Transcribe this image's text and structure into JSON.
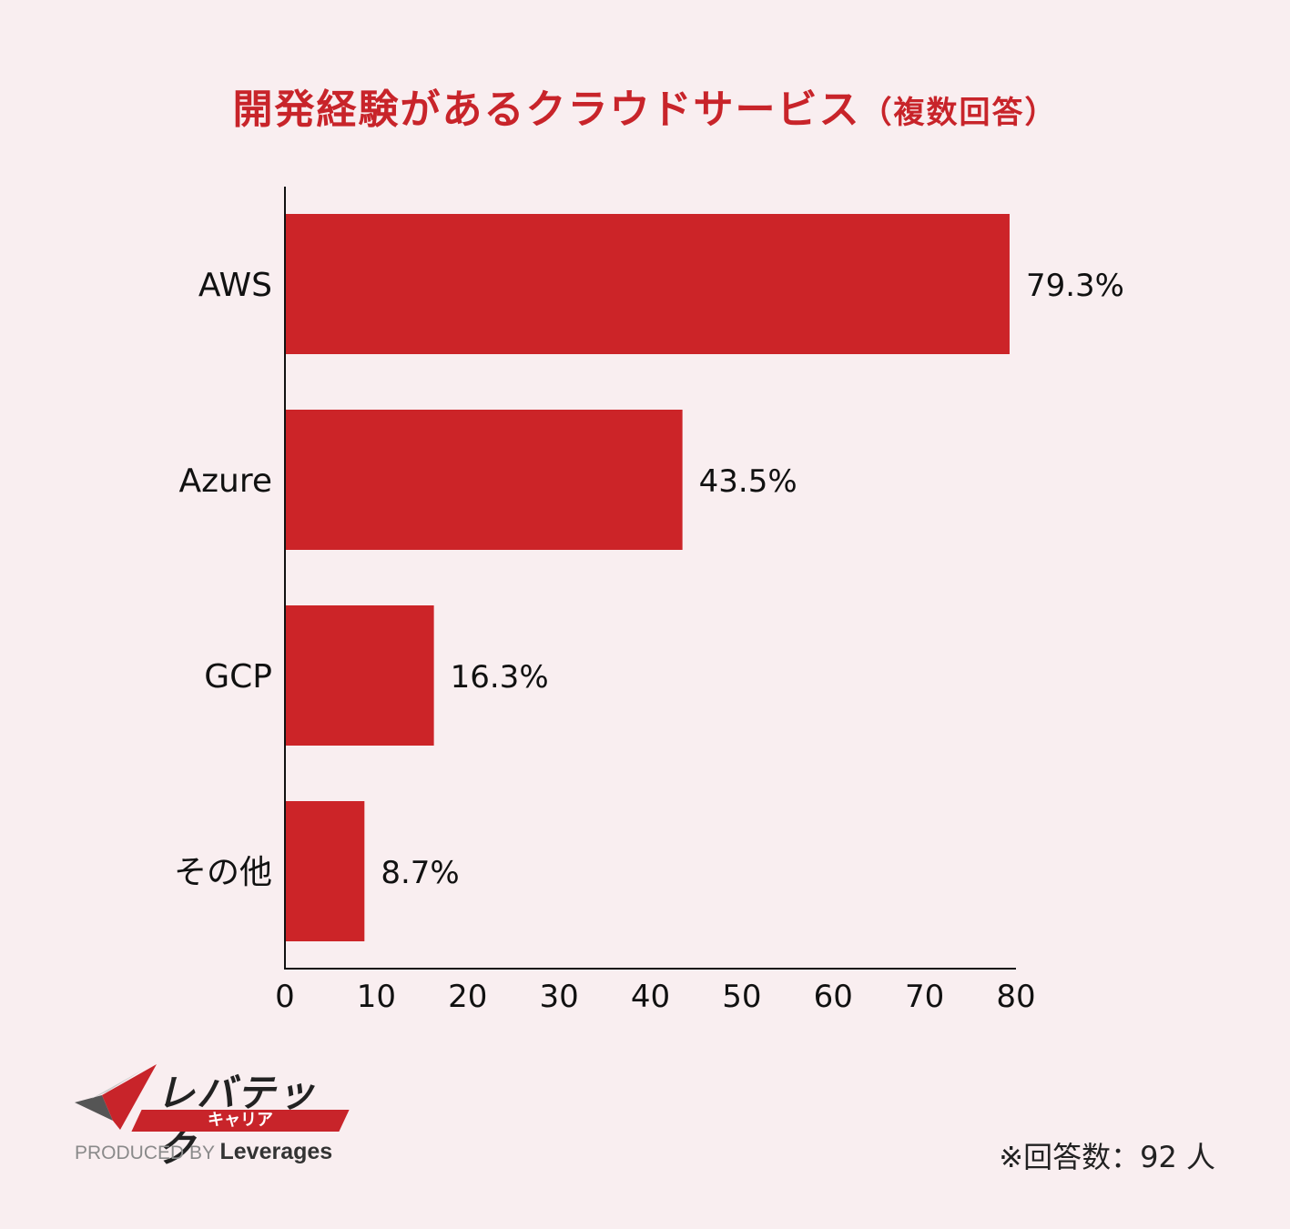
{
  "chart_data": {
    "type": "bar",
    "orientation": "horizontal",
    "title": "開発経験があるクラウドサービス",
    "subtitle": "（複数回答）",
    "categories": [
      "AWS",
      "Azure",
      "GCP",
      "その他"
    ],
    "values": [
      79.3,
      43.5,
      16.3,
      8.7
    ],
    "value_labels": [
      "79.3%",
      "43.5%",
      "16.3%",
      "8.7%"
    ],
    "xlim": [
      0,
      80
    ],
    "x_ticks": [
      "0",
      "10",
      "20",
      "30",
      "40",
      "50",
      "60",
      "70",
      "80"
    ],
    "bar_color": "#cc2428",
    "grid": false,
    "legend": "none"
  },
  "logo": {
    "main": "レバテック",
    "sub": "キャリア",
    "produced_by": "PRODUCED BY",
    "brand": "Leverages"
  },
  "footnote": "※回答数：92 人"
}
